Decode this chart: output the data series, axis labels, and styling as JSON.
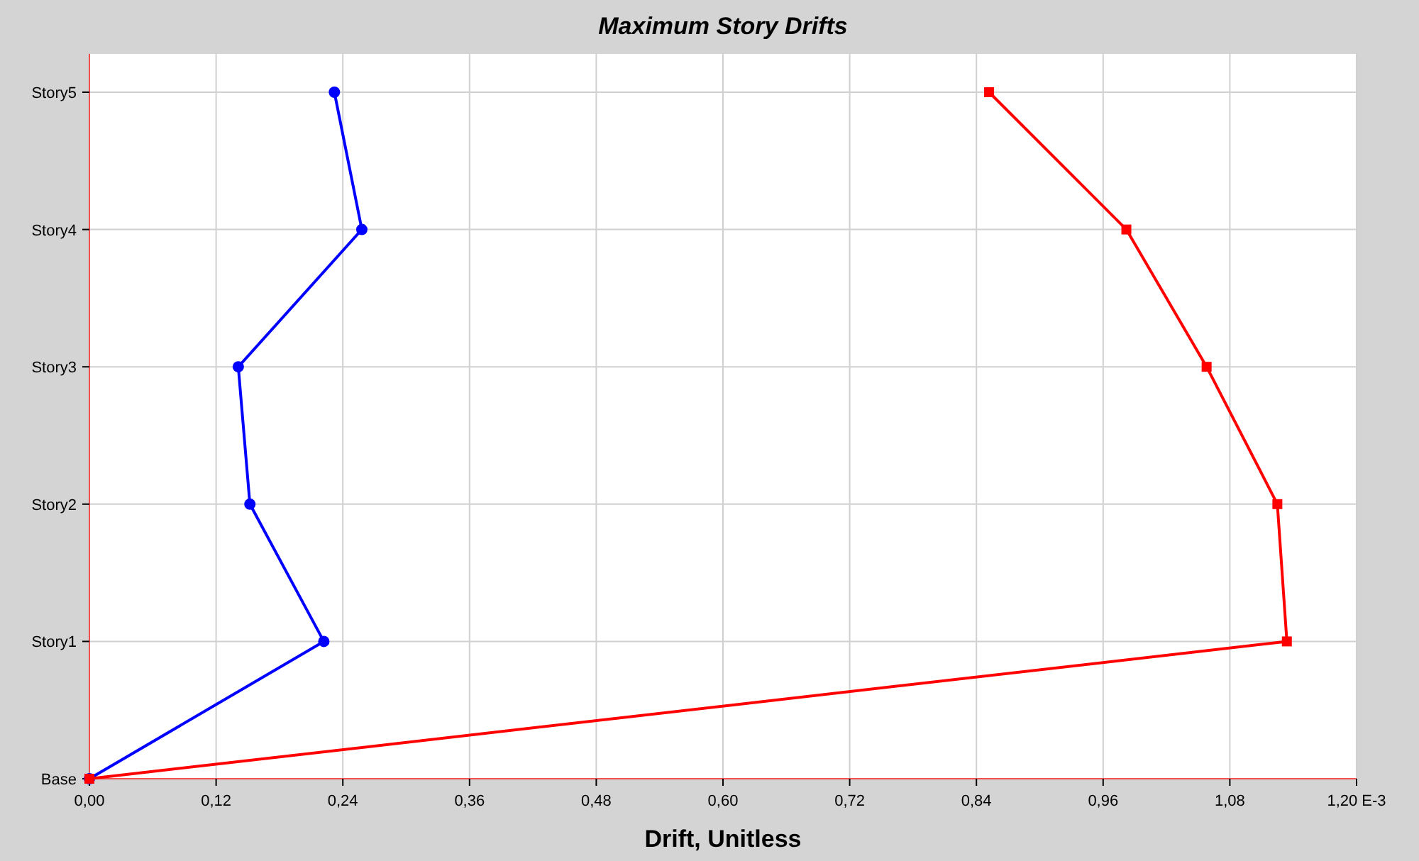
{
  "chart_data": {
    "type": "line",
    "orientation": "horizontal",
    "title": "Maximum Story Drifts",
    "xlabel": "Drift, Unitless",
    "xlim": [
      0,
      1.2
    ],
    "xticks": [
      {
        "value": 0,
        "label": "0,00"
      },
      {
        "value": 0.12,
        "label": "0,12"
      },
      {
        "value": 0.24,
        "label": "0,24"
      },
      {
        "value": 0.36,
        "label": "0,36"
      },
      {
        "value": 0.48,
        "label": "0,48"
      },
      {
        "value": 0.6,
        "label": "0,60"
      },
      {
        "value": 0.72,
        "label": "0,72"
      },
      {
        "value": 0.84,
        "label": "0,84"
      },
      {
        "value": 0.96,
        "label": "0,96"
      },
      {
        "value": 1.08,
        "label": "1,08"
      },
      {
        "value": 1.2,
        "label": "1,20 E-3"
      }
    ],
    "categories": [
      "Story5",
      "Story4",
      "Story3",
      "Story2",
      "Story1",
      "Base"
    ],
    "grid": true,
    "line_style": "solid",
    "series": [
      {
        "color": "#0000ff",
        "marker": "circle",
        "values": [
          0.232,
          0.258,
          0.141,
          0.152,
          0.222,
          0
        ]
      },
      {
        "color": "#ff0000",
        "marker": "square",
        "values": [
          0.852,
          0.982,
          1.058,
          1.125,
          1.134,
          0
        ]
      }
    ]
  }
}
